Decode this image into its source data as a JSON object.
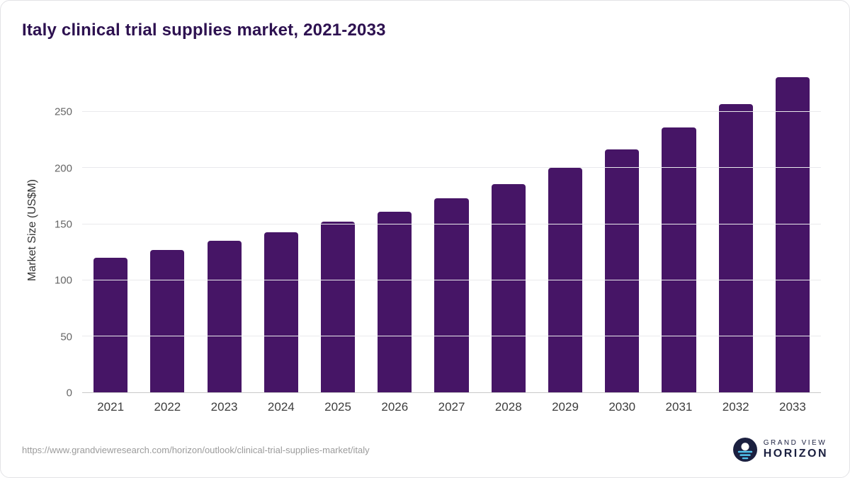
{
  "title": "Italy clinical trial supplies market, 2021-2033",
  "chart_data": {
    "type": "bar",
    "categories": [
      "2021",
      "2022",
      "2023",
      "2024",
      "2025",
      "2026",
      "2027",
      "2028",
      "2029",
      "2030",
      "2031",
      "2032",
      "2033"
    ],
    "values": [
      120,
      127,
      135,
      143,
      152,
      161,
      173,
      186,
      200,
      217,
      236,
      257,
      281
    ],
    "title": "Italy clinical trial supplies market, 2021-2033",
    "xlabel": "",
    "ylabel": "Market Size (US$M)",
    "ylim": [
      0,
      290
    ],
    "yticks": [
      0,
      50,
      100,
      150,
      200,
      250
    ],
    "grid": true,
    "legend": "none",
    "bar_color": "#461566"
  },
  "footer": {
    "source_url": "https://www.grandviewresearch.com/horizon/outlook/clinical-trial-supplies-market/italy",
    "logo": {
      "brand_top": "GRAND VIEW",
      "brand_bottom": "HORIZON",
      "icon": "horizon-sun-icon",
      "navy": "#1b2040",
      "light_blue": "#53c7ef"
    }
  }
}
